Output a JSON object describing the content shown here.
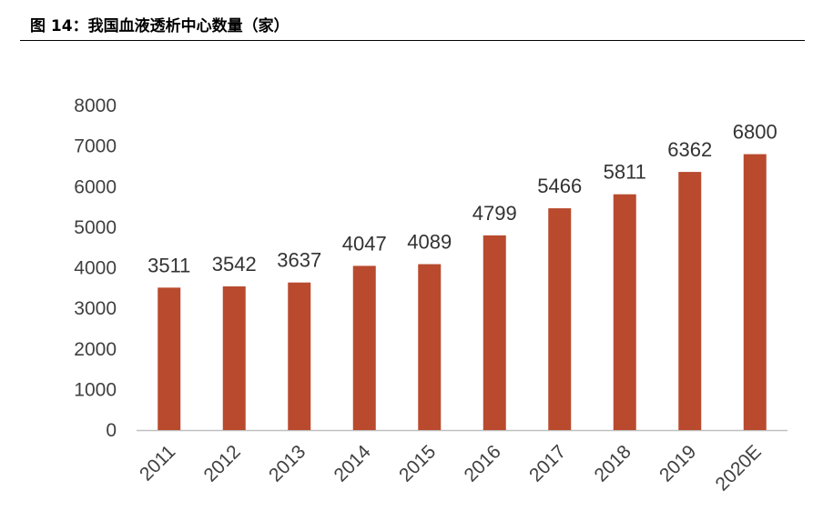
{
  "header": {
    "title": "图 14：我国血液透析中心数量（家）"
  },
  "colors": {
    "bar": "#B94A2E",
    "axis": "#BFBFBF",
    "text": "#404040"
  },
  "chart_data": {
    "type": "bar",
    "title": "",
    "xlabel": "",
    "ylabel": "",
    "categories": [
      "2011",
      "2012",
      "2013",
      "2014",
      "2015",
      "2016",
      "2017",
      "2018",
      "2019",
      "2020E"
    ],
    "values": [
      3511,
      3542,
      3637,
      4047,
      4089,
      4799,
      5466,
      5811,
      6362,
      6800
    ],
    "ylim": [
      0,
      8000
    ],
    "yticks": [
      0,
      1000,
      2000,
      3000,
      4000,
      5000,
      6000,
      7000,
      8000
    ],
    "grid": false,
    "data_labels": true
  }
}
